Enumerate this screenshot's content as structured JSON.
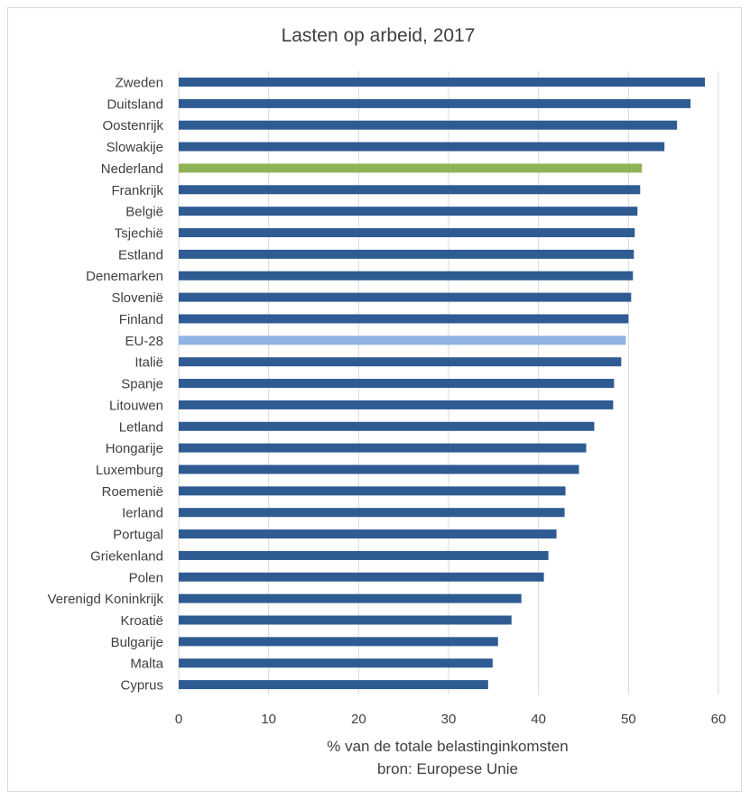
{
  "chart_data": {
    "type": "bar",
    "orientation": "horizontal",
    "title": "Lasten op arbeid, 2017",
    "xlabel": "% van de totale belastinginkomsten",
    "source": "bron: Europese Unie",
    "xlim": [
      0,
      60
    ],
    "xticks": [
      0,
      10,
      20,
      30,
      40,
      50,
      60
    ],
    "grid": "vertical",
    "legend": "none",
    "colors": {
      "default": "#2f5b93",
      "Nederland": "#8fb455",
      "EU-28": "#8fb4e3"
    },
    "categories": [
      "Zweden",
      "Duitsland",
      "Oostenrijk",
      "Slowakije",
      "Nederland",
      "Frankrijk",
      "België",
      "Tsjechië",
      "Estland",
      "Denemarken",
      "Slovenië",
      "Finland",
      "EU-28",
      "Italië",
      "Spanje",
      "Litouwen",
      "Letland",
      "Hongarije",
      "Luxemburg",
      "Roemenië",
      "Ierland",
      "Portugal",
      "Griekenland",
      "Polen",
      "Verenigd Koninkrijk",
      "Kroatië",
      "Bulgarije",
      "Malta",
      "Cyprus"
    ],
    "values": [
      58.5,
      56.9,
      55.4,
      54.0,
      51.5,
      51.3,
      51.0,
      50.7,
      50.6,
      50.5,
      50.3,
      50.0,
      49.7,
      49.2,
      48.4,
      48.3,
      46.2,
      45.3,
      44.5,
      43.0,
      42.9,
      42.0,
      41.1,
      40.6,
      38.1,
      37.0,
      35.5,
      34.9,
      34.4
    ]
  }
}
